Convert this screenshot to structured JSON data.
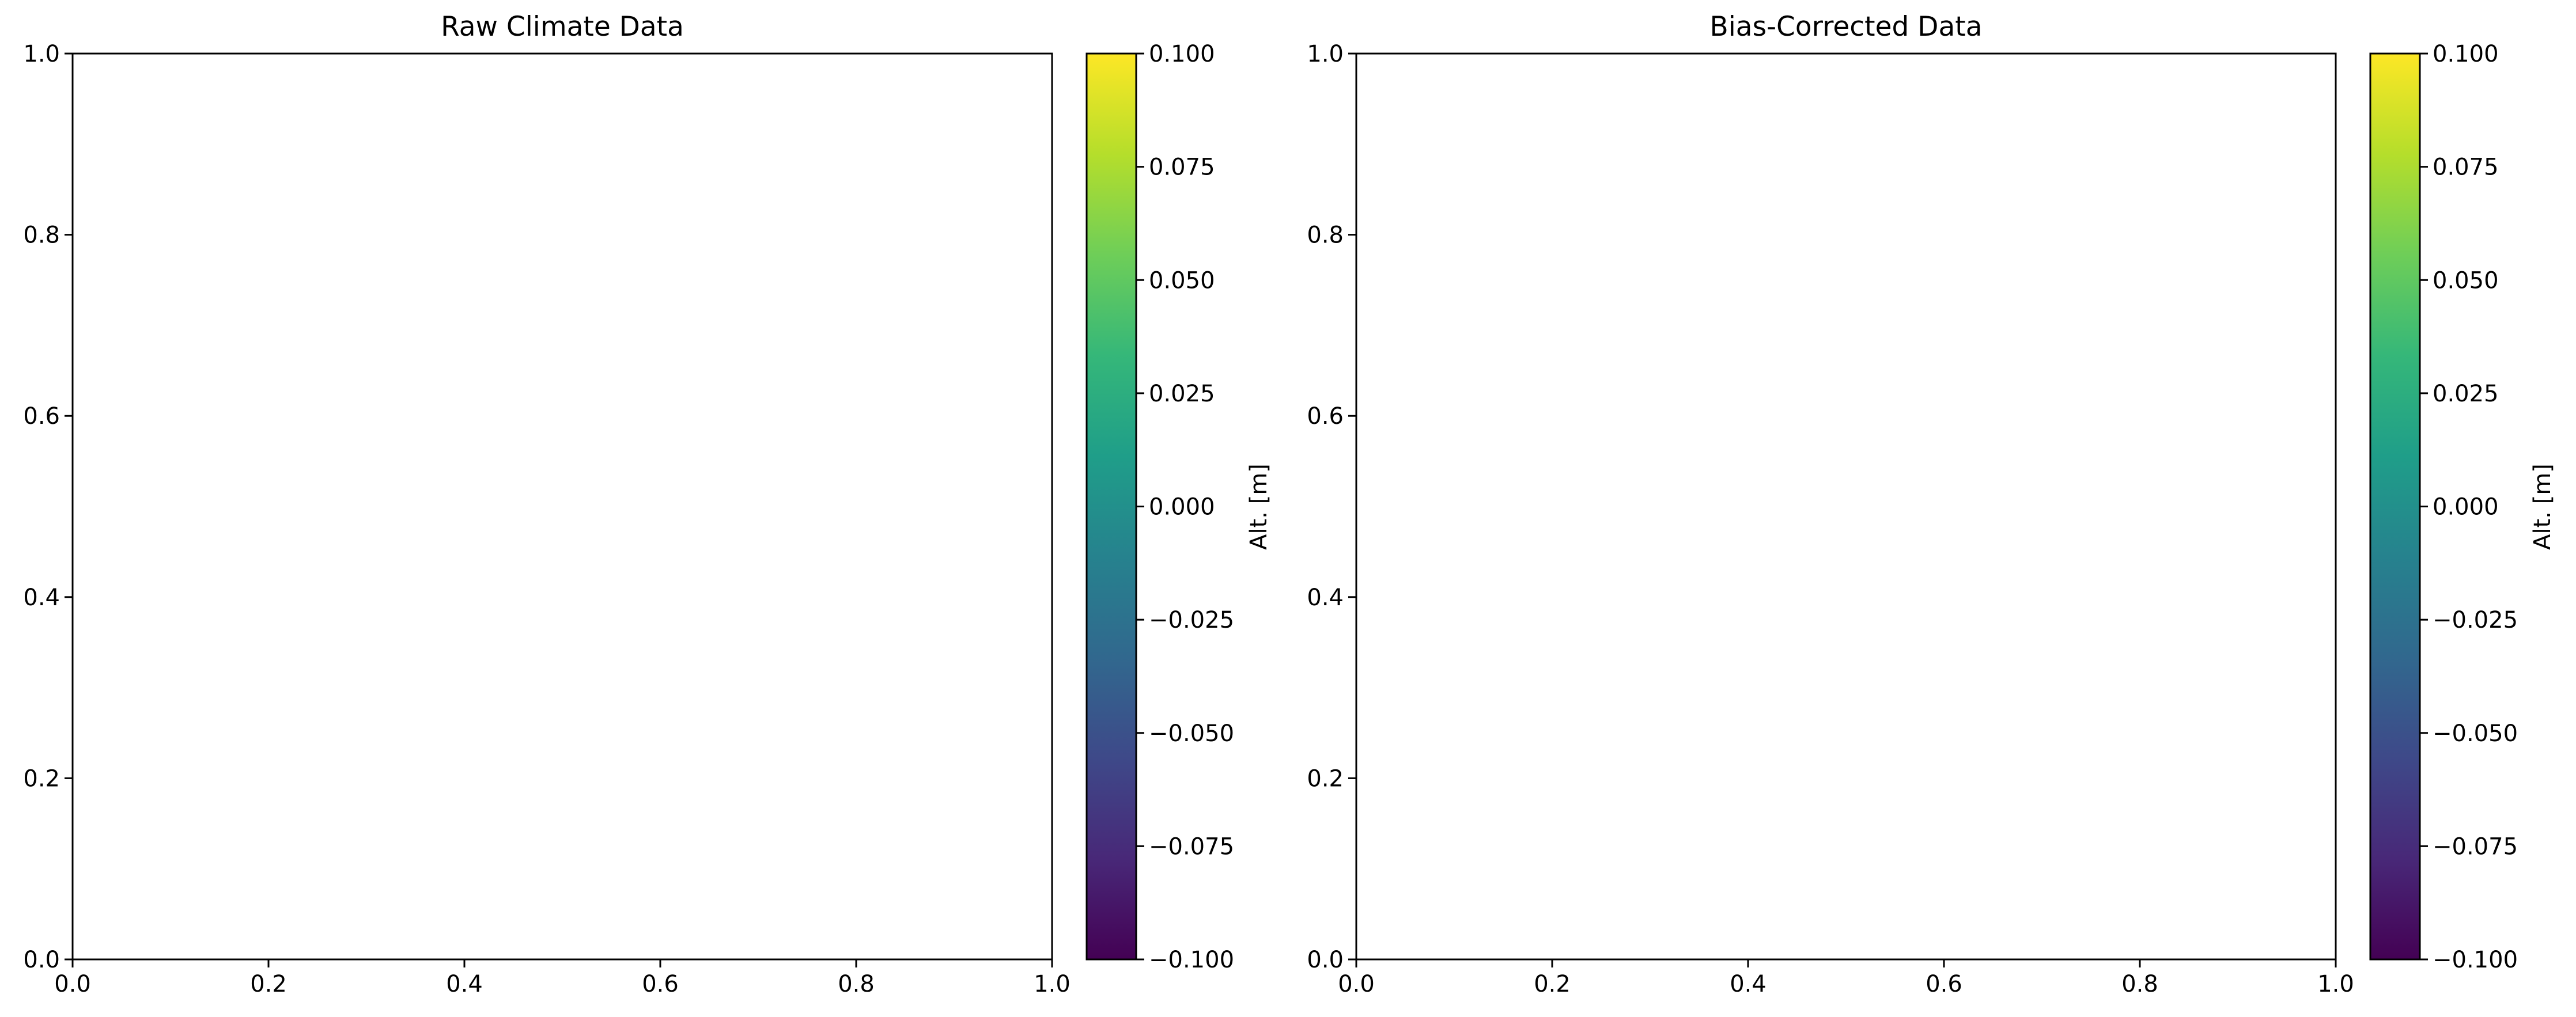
{
  "colors": {
    "viridis": [
      "#440154",
      "#482878",
      "#3e4989",
      "#31688e",
      "#26828e",
      "#1f9e89",
      "#35b779",
      "#6ece58",
      "#b5de2b",
      "#fde725"
    ],
    "axes_edge": "#000000",
    "background": "#ffffff"
  },
  "chart_data": [
    {
      "type": "heatmap",
      "title": "Raw Climate Data",
      "xlabel": "",
      "ylabel": "",
      "xlim": [
        0.0,
        1.0
      ],
      "ylim": [
        0.0,
        1.0
      ],
      "xticks": [
        "0.0",
        "0.2",
        "0.4",
        "0.6",
        "0.8",
        "1.0"
      ],
      "yticks": [
        "0.0",
        "0.2",
        "0.4",
        "0.6",
        "0.8",
        "1.0"
      ],
      "values": [],
      "grid": false,
      "colorbar": {
        "label": "Alt. [m]",
        "colormap": "viridis",
        "range": [
          -0.1,
          0.1
        ],
        "ticks": [
          "−0.100",
          "−0.075",
          "−0.050",
          "−0.025",
          "0.000",
          "0.025",
          "0.050",
          "0.075",
          "0.100"
        ]
      }
    },
    {
      "type": "heatmap",
      "title": "Bias-Corrected Data",
      "xlabel": "",
      "ylabel": "",
      "xlim": [
        0.0,
        1.0
      ],
      "ylim": [
        0.0,
        1.0
      ],
      "xticks": [
        "0.0",
        "0.2",
        "0.4",
        "0.6",
        "0.8",
        "1.0"
      ],
      "yticks": [
        "0.0",
        "0.2",
        "0.4",
        "0.6",
        "0.8",
        "1.0"
      ],
      "values": [],
      "grid": false,
      "colorbar": {
        "label": "Alt. [m]",
        "colormap": "viridis",
        "range": [
          -0.1,
          0.1
        ],
        "ticks": [
          "−0.100",
          "−0.075",
          "−0.050",
          "−0.025",
          "0.000",
          "0.025",
          "0.050",
          "0.075",
          "0.100"
        ]
      }
    }
  ]
}
